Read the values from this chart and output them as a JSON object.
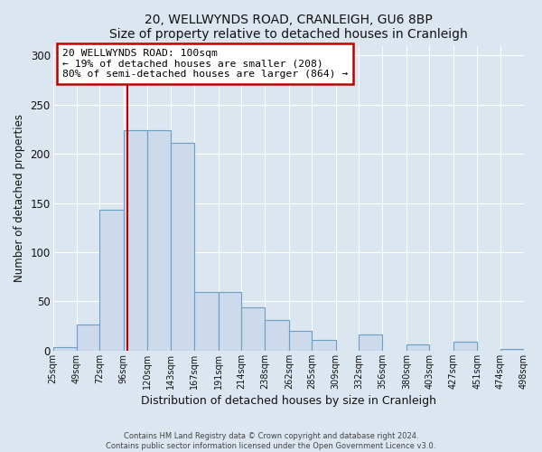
{
  "title": "20, WELLWYNDS ROAD, CRANLEIGH, GU6 8BP",
  "subtitle": "Size of property relative to detached houses in Cranleigh",
  "xlabel": "Distribution of detached houses by size in Cranleigh",
  "ylabel": "Number of detached properties",
  "bar_color": "#ccdaeb",
  "bar_edge_color": "#6b9fc4",
  "background_color": "#dce6f0",
  "axes_bg_color": "#dce6f0",
  "grid_color": "#ffffff",
  "vline_x": 100,
  "vline_color": "#bb0000",
  "bin_edges": [
    25,
    49,
    72,
    96,
    120,
    143,
    167,
    191,
    214,
    238,
    262,
    285,
    309,
    332,
    356,
    380,
    403,
    427,
    451,
    474,
    498
  ],
  "bar_heights": [
    4,
    27,
    143,
    224,
    224,
    211,
    60,
    60,
    44,
    31,
    20,
    11,
    0,
    16,
    0,
    6,
    0,
    9,
    0,
    2
  ],
  "annotation_text": "20 WELLWYNDS ROAD: 100sqm\n← 19% of detached houses are smaller (208)\n80% of semi-detached houses are larger (864) →",
  "annotation_box_color": "#ffffff",
  "annotation_box_edge_color": "#bb0000",
  "ylim": [
    0,
    310
  ],
  "yticks": [
    0,
    50,
    100,
    150,
    200,
    250,
    300
  ],
  "footer_text": "Contains HM Land Registry data © Crown copyright and database right 2024.\nContains public sector information licensed under the Open Government Licence v3.0.",
  "tick_labels": [
    "25sqm",
    "49sqm",
    "72sqm",
    "96sqm",
    "120sqm",
    "143sqm",
    "167sqm",
    "191sqm",
    "214sqm",
    "238sqm",
    "262sqm",
    "285sqm",
    "309sqm",
    "332sqm",
    "356sqm",
    "380sqm",
    "403sqm",
    "427sqm",
    "451sqm",
    "474sqm",
    "498sqm"
  ]
}
